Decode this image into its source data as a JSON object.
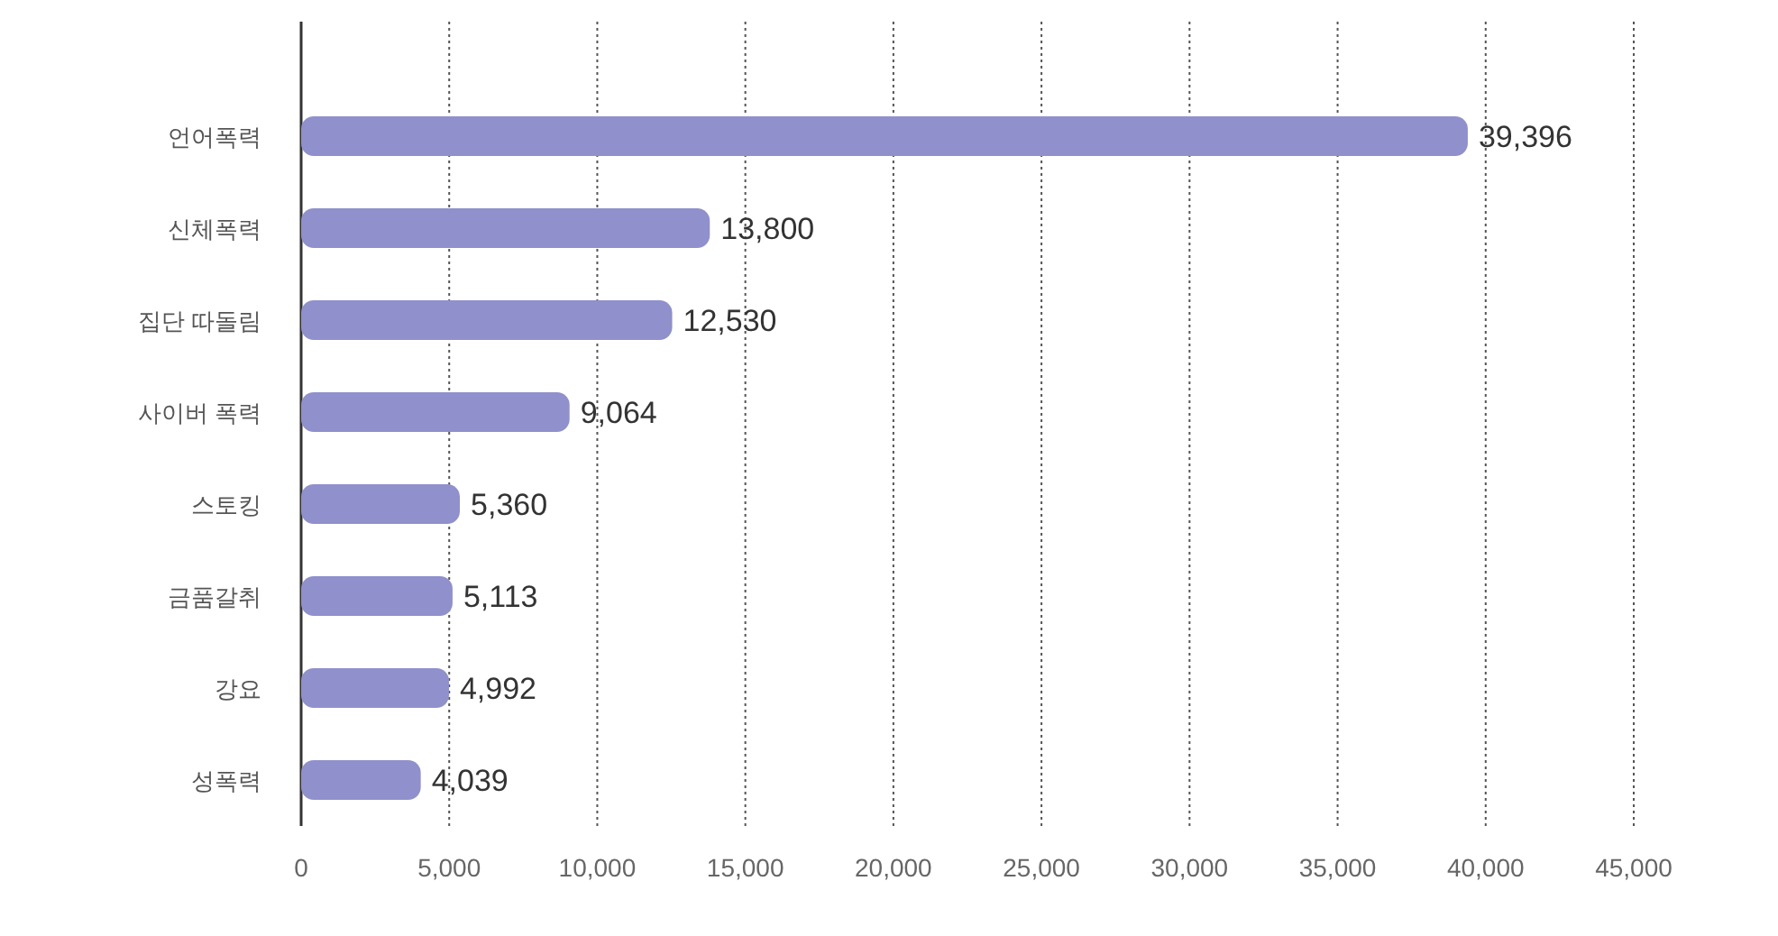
{
  "chart_data": {
    "type": "bar",
    "orientation": "horizontal",
    "categories": [
      "언어폭력",
      "신체폭력",
      "집단 따돌림",
      "사이버 폭력",
      "스토킹",
      "금품갈취",
      "강요",
      "성폭력"
    ],
    "values": [
      39396,
      13800,
      12530,
      9064,
      5360,
      5113,
      4992,
      4039
    ],
    "color": "#9090cc",
    "xlim": [
      0,
      45000
    ],
    "xticks": [
      0,
      {
        "value": 5000,
        "label": "5,000"
      },
      {
        "value": 10000,
        "label": "10,000"
      },
      {
        "value": 15000,
        "label": "15,000"
      },
      {
        "value": 20000,
        "label": "20,000"
      },
      {
        "value": 25000,
        "label": "25,000"
      },
      {
        "value": 30000,
        "label": "30,000"
      },
      {
        "value": 35000,
        "label": "35,000"
      },
      {
        "value": 40000,
        "label": "40,000"
      },
      {
        "value": 45000,
        "label": "45,000"
      }
    ],
    "value_labels": [
      "39,396",
      "13,800",
      "12,530",
      "9,064",
      "5,360",
      "5,113",
      "4,992",
      "4,039"
    ],
    "grid": "x"
  }
}
